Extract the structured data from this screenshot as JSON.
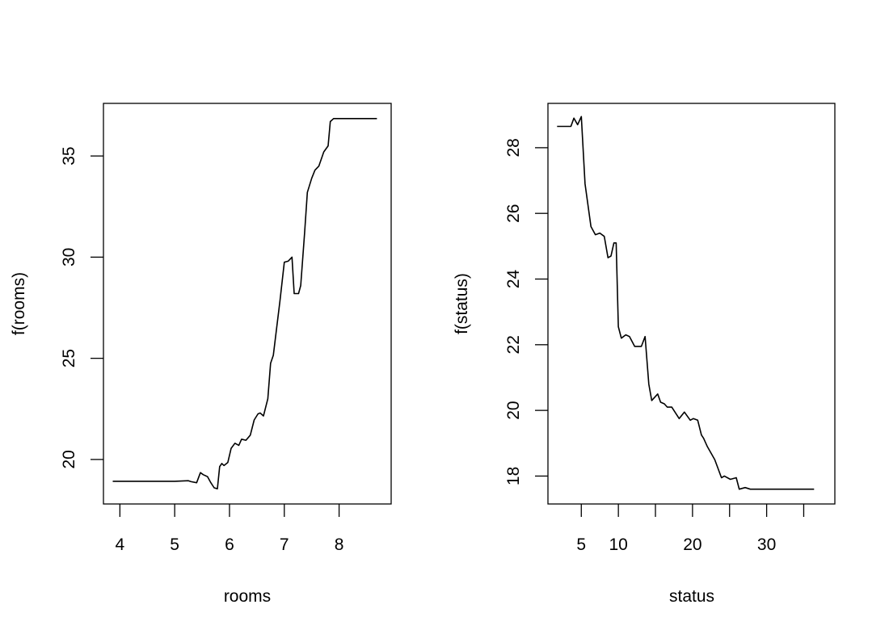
{
  "chart_data": [
    {
      "type": "line",
      "title": "",
      "xlabel": "rooms",
      "ylabel": "f(rooms)",
      "xlim": [
        3.7,
        8.95
      ],
      "ylim": [
        17.8,
        37.6
      ],
      "grid": false,
      "legend": null,
      "x_ticks": [
        4,
        5,
        6,
        7,
        8
      ],
      "x_tick_labels": [
        "4",
        "5",
        "6",
        "7",
        "8"
      ],
      "y_ticks": [
        20,
        25,
        30,
        35
      ],
      "y_tick_labels": [
        "20",
        "25",
        "30",
        "35"
      ],
      "x": [
        3.87,
        4.5,
        5.0,
        5.25,
        5.3,
        5.4,
        5.47,
        5.52,
        5.6,
        5.66,
        5.72,
        5.78,
        5.82,
        5.86,
        5.9,
        5.97,
        6.03,
        6.1,
        6.17,
        6.22,
        6.3,
        6.38,
        6.45,
        6.52,
        6.56,
        6.62,
        6.7,
        6.75,
        6.8,
        6.86,
        6.92,
        7.0,
        7.07,
        7.14,
        7.18,
        7.26,
        7.3,
        7.37,
        7.42,
        7.5,
        7.56,
        7.63,
        7.72,
        7.8,
        7.84,
        7.9,
        8.0,
        8.3,
        8.69
      ],
      "y": [
        18.92,
        18.92,
        18.92,
        18.95,
        18.9,
        18.85,
        19.35,
        19.25,
        19.15,
        18.85,
        18.6,
        18.55,
        19.65,
        19.8,
        19.7,
        19.85,
        20.55,
        20.8,
        20.7,
        21.0,
        20.95,
        21.2,
        21.95,
        22.25,
        22.3,
        22.15,
        23.0,
        24.75,
        25.15,
        26.5,
        27.8,
        29.75,
        29.8,
        30.0,
        28.2,
        28.2,
        28.6,
        31.2,
        33.2,
        33.9,
        34.3,
        34.5,
        35.2,
        35.5,
        36.7,
        36.85,
        36.85,
        36.85,
        36.85
      ]
    },
    {
      "type": "line",
      "title": "",
      "xlabel": "status",
      "ylabel": "f(status)",
      "xlim": [
        0.5,
        39.2
      ],
      "ylim": [
        17.15,
        29.35
      ],
      "grid": false,
      "legend": null,
      "x_ticks": [
        5,
        10,
        15,
        20,
        25,
        30,
        35
      ],
      "x_tick_labels": [
        "5",
        "10",
        "",
        "20",
        "",
        "30",
        ""
      ],
      "y_ticks": [
        18,
        20,
        22,
        24,
        26,
        28
      ],
      "y_tick_labels": [
        "18",
        "20",
        "22",
        "24",
        "26",
        "28"
      ],
      "x": [
        1.73,
        3.0,
        3.6,
        4.0,
        4.5,
        5.0,
        5.5,
        6.3,
        6.9,
        7.5,
        8.1,
        8.6,
        9.0,
        9.4,
        9.7,
        10.0,
        10.4,
        11.0,
        11.5,
        12.2,
        13.1,
        13.6,
        14.1,
        14.5,
        15.3,
        15.7,
        16.2,
        16.6,
        17.2,
        18.2,
        18.9,
        19.7,
        20.1,
        20.7,
        21.2,
        21.5,
        22.0,
        23.0,
        23.9,
        24.3,
        25.1,
        25.9,
        26.3,
        27.1,
        27.8,
        29.0,
        32.0,
        36.4
      ],
      "y": [
        28.65,
        28.65,
        28.65,
        28.9,
        28.7,
        28.95,
        26.9,
        25.6,
        25.35,
        25.4,
        25.3,
        24.65,
        24.7,
        25.1,
        25.1,
        22.55,
        22.2,
        22.3,
        22.25,
        21.95,
        21.95,
        22.25,
        20.8,
        20.3,
        20.5,
        20.25,
        20.2,
        20.1,
        20.1,
        19.75,
        19.95,
        19.7,
        19.75,
        19.7,
        19.25,
        19.15,
        18.9,
        18.5,
        17.95,
        18.0,
        17.9,
        17.95,
        17.6,
        17.65,
        17.6,
        17.6,
        17.6,
        17.6
      ]
    }
  ]
}
